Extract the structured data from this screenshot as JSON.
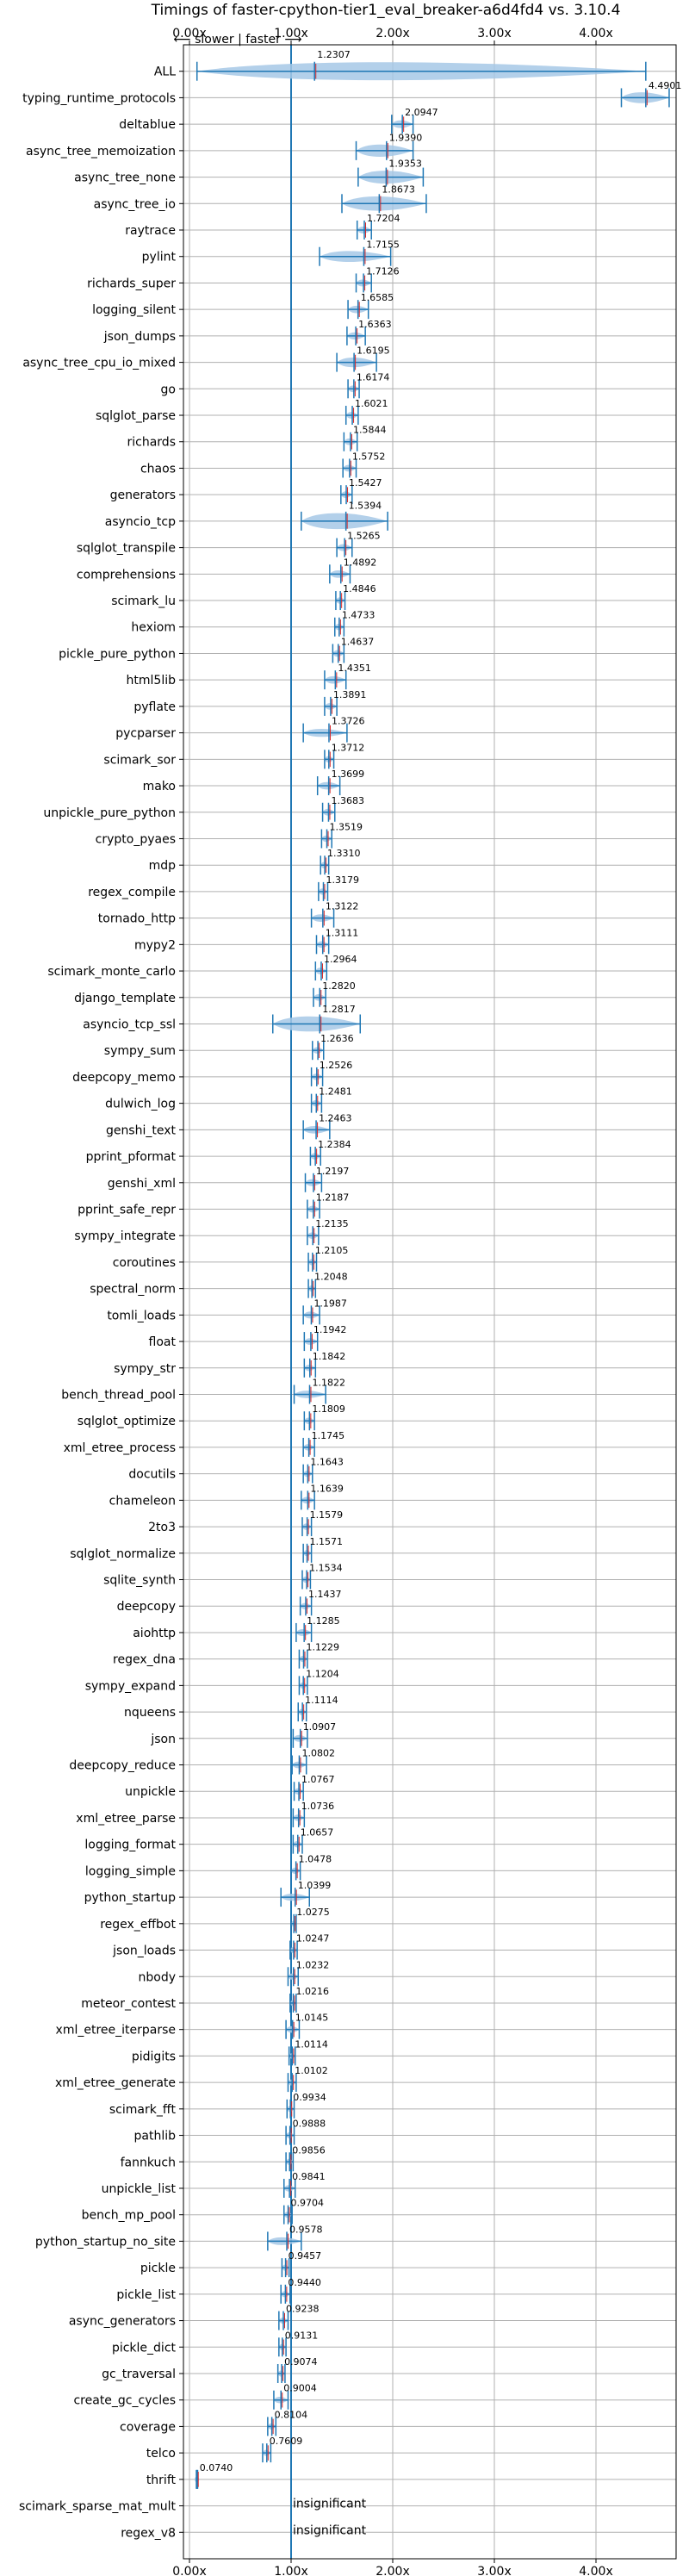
{
  "chart_data": {
    "type": "violin",
    "title": "Timings of faster-cpython-tier1_eval_breaker-a6d4fd4 vs. 3.10.4",
    "direction_label": "⟵ slower | faster ⟶",
    "xlim": [
      0,
      4.4
    ],
    "xticks": [
      0,
      1,
      2,
      3,
      4
    ],
    "xtick_labels": [
      "0.00x",
      "1.00x",
      "2.00x",
      "3.00x",
      "4.00x"
    ],
    "reference_line": 1.0,
    "colors": {
      "accent": "#1f77b4",
      "violin": "#a6c8e6",
      "median": "#d62728",
      "grid": "#b0b0b0"
    },
    "rows": [
      {
        "name": "ALL",
        "label": "1.2307",
        "value": 1.2307,
        "min": 0.074,
        "max": 4.4901,
        "spread": 0.45
      },
      {
        "name": "typing_runtime_protocols",
        "label": "4.4901",
        "value": 4.4901,
        "min": 4.25,
        "max": 4.72,
        "spread": 0.2
      },
      {
        "name": "deltablue",
        "label": "2.0947",
        "value": 2.0947,
        "min": 1.99,
        "max": 2.2,
        "spread": 0.09
      },
      {
        "name": "async_tree_memoization",
        "label": "1.9390",
        "value": 1.939,
        "min": 1.64,
        "max": 2.2,
        "spread": 0.25
      },
      {
        "name": "async_tree_none",
        "label": "1.9353",
        "value": 1.9353,
        "min": 1.66,
        "max": 2.3,
        "spread": 0.27
      },
      {
        "name": "async_tree_io",
        "label": "1.8673",
        "value": 1.8673,
        "min": 1.5,
        "max": 2.33,
        "spread": 0.32
      },
      {
        "name": "raytrace",
        "label": "1.7204",
        "value": 1.7204,
        "min": 1.65,
        "max": 1.79,
        "spread": 0.06
      },
      {
        "name": "pylint",
        "label": "1.7155",
        "value": 1.7155,
        "min": 1.28,
        "max": 1.98,
        "spread": 0.2
      },
      {
        "name": "richards_super",
        "label": "1.7126",
        "value": 1.7126,
        "min": 1.64,
        "max": 1.79,
        "spread": 0.06
      },
      {
        "name": "logging_silent",
        "label": "1.6585",
        "value": 1.6585,
        "min": 1.56,
        "max": 1.76,
        "spread": 0.08
      },
      {
        "name": "json_dumps",
        "label": "1.6363",
        "value": 1.6363,
        "min": 1.55,
        "max": 1.73,
        "spread": 0.07
      },
      {
        "name": "async_tree_cpu_io_mixed",
        "label": "1.6195",
        "value": 1.6195,
        "min": 1.45,
        "max": 1.84,
        "spread": 0.16
      },
      {
        "name": "go",
        "label": "1.6174",
        "value": 1.6174,
        "min": 1.56,
        "max": 1.67,
        "spread": 0.05
      },
      {
        "name": "sqlglot_parse",
        "label": "1.6021",
        "value": 1.6021,
        "min": 1.54,
        "max": 1.66,
        "spread": 0.05
      },
      {
        "name": "richards",
        "label": "1.5844",
        "value": 1.5844,
        "min": 1.52,
        "max": 1.65,
        "spread": 0.05
      },
      {
        "name": "chaos",
        "label": "1.5752",
        "value": 1.5752,
        "min": 1.51,
        "max": 1.64,
        "spread": 0.05
      },
      {
        "name": "generators",
        "label": "1.5427",
        "value": 1.5427,
        "min": 1.49,
        "max": 1.6,
        "spread": 0.05
      },
      {
        "name": "asyncio_tcp",
        "label": "1.5394",
        "value": 1.5394,
        "min": 1.1,
        "max": 1.95,
        "spread": 0.38
      },
      {
        "name": "sqlglot_transpile",
        "label": "1.5265",
        "value": 1.5265,
        "min": 1.45,
        "max": 1.6,
        "spread": 0.06
      },
      {
        "name": "comprehensions",
        "label": "1.4892",
        "value": 1.4892,
        "min": 1.38,
        "max": 1.58,
        "spread": 0.08
      },
      {
        "name": "scimark_lu",
        "label": "1.4846",
        "value": 1.4846,
        "min": 1.44,
        "max": 1.53,
        "spread": 0.04
      },
      {
        "name": "hexiom",
        "label": "1.4733",
        "value": 1.4733,
        "min": 1.43,
        "max": 1.52,
        "spread": 0.04
      },
      {
        "name": "pickle_pure_python",
        "label": "1.4637",
        "value": 1.4637,
        "min": 1.41,
        "max": 1.52,
        "spread": 0.05
      },
      {
        "name": "html5lib",
        "label": "1.4351",
        "value": 1.4351,
        "min": 1.33,
        "max": 1.54,
        "spread": 0.08
      },
      {
        "name": "pyflate",
        "label": "1.3891",
        "value": 1.3891,
        "min": 1.33,
        "max": 1.45,
        "spread": 0.05
      },
      {
        "name": "pycparser",
        "label": "1.3726",
        "value": 1.3726,
        "min": 1.12,
        "max": 1.55,
        "spread": 0.1
      },
      {
        "name": "scimark_sor",
        "label": "1.3712",
        "value": 1.3712,
        "min": 1.33,
        "max": 1.42,
        "spread": 0.04
      },
      {
        "name": "mako",
        "label": "1.3699",
        "value": 1.3699,
        "min": 1.26,
        "max": 1.48,
        "spread": 0.08
      },
      {
        "name": "unpickle_pure_python",
        "label": "1.3683",
        "value": 1.3683,
        "min": 1.31,
        "max": 1.43,
        "spread": 0.05
      },
      {
        "name": "crypto_pyaes",
        "label": "1.3519",
        "value": 1.3519,
        "min": 1.3,
        "max": 1.4,
        "spread": 0.04
      },
      {
        "name": "mdp",
        "label": "1.3310",
        "value": 1.331,
        "min": 1.29,
        "max": 1.37,
        "spread": 0.04
      },
      {
        "name": "regex_compile",
        "label": "1.3179",
        "value": 1.3179,
        "min": 1.27,
        "max": 1.36,
        "spread": 0.04
      },
      {
        "name": "tornado_http",
        "label": "1.3122",
        "value": 1.3122,
        "min": 1.2,
        "max": 1.42,
        "spread": 0.08
      },
      {
        "name": "mypy2",
        "label": "1.3111",
        "value": 1.3111,
        "min": 1.25,
        "max": 1.37,
        "spread": 0.05
      },
      {
        "name": "scimark_monte_carlo",
        "label": "1.2964",
        "value": 1.2964,
        "min": 1.24,
        "max": 1.35,
        "spread": 0.05
      },
      {
        "name": "django_template",
        "label": "1.2820",
        "value": 1.282,
        "min": 1.22,
        "max": 1.34,
        "spread": 0.05
      },
      {
        "name": "asyncio_tcp_ssl",
        "label": "1.2817",
        "value": 1.2817,
        "min": 0.82,
        "max": 1.68,
        "spread": 0.35
      },
      {
        "name": "sympy_sum",
        "label": "1.2636",
        "value": 1.2636,
        "min": 1.21,
        "max": 1.32,
        "spread": 0.04
      },
      {
        "name": "deepcopy_memo",
        "label": "1.2526",
        "value": 1.2526,
        "min": 1.2,
        "max": 1.31,
        "spread": 0.04
      },
      {
        "name": "dulwich_log",
        "label": "1.2481",
        "value": 1.2481,
        "min": 1.2,
        "max": 1.3,
        "spread": 0.04
      },
      {
        "name": "genshi_text",
        "label": "1.2463",
        "value": 1.2463,
        "min": 1.12,
        "max": 1.38,
        "spread": 0.08
      },
      {
        "name": "pprint_pformat",
        "label": "1.2384",
        "value": 1.2384,
        "min": 1.19,
        "max": 1.29,
        "spread": 0.04
      },
      {
        "name": "genshi_xml",
        "label": "1.2197",
        "value": 1.2197,
        "min": 1.14,
        "max": 1.3,
        "spread": 0.06
      },
      {
        "name": "pprint_safe_repr",
        "label": "1.2187",
        "value": 1.2187,
        "min": 1.16,
        "max": 1.28,
        "spread": 0.05
      },
      {
        "name": "sympy_integrate",
        "label": "1.2135",
        "value": 1.2135,
        "min": 1.16,
        "max": 1.27,
        "spread": 0.04
      },
      {
        "name": "coroutines",
        "label": "1.2105",
        "value": 1.2105,
        "min": 1.17,
        "max": 1.25,
        "spread": 0.04
      },
      {
        "name": "spectral_norm",
        "label": "1.2048",
        "value": 1.2048,
        "min": 1.17,
        "max": 1.24,
        "spread": 0.03
      },
      {
        "name": "tomli_loads",
        "label": "1.1987",
        "value": 1.1987,
        "min": 1.12,
        "max": 1.28,
        "spread": 0.06
      },
      {
        "name": "float",
        "label": "1.1942",
        "value": 1.1942,
        "min": 1.13,
        "max": 1.26,
        "spread": 0.05
      },
      {
        "name": "sympy_str",
        "label": "1.1842",
        "value": 1.1842,
        "min": 1.13,
        "max": 1.24,
        "spread": 0.04
      },
      {
        "name": "bench_thread_pool",
        "label": "1.1822",
        "value": 1.1822,
        "min": 1.03,
        "max": 1.34,
        "spread": 0.08
      },
      {
        "name": "sqlglot_optimize",
        "label": "1.1809",
        "value": 1.1809,
        "min": 1.13,
        "max": 1.23,
        "spread": 0.04
      },
      {
        "name": "xml_etree_process",
        "label": "1.1745",
        "value": 1.1745,
        "min": 1.12,
        "max": 1.23,
        "spread": 0.04
      },
      {
        "name": "docutils",
        "label": "1.1643",
        "value": 1.1643,
        "min": 1.12,
        "max": 1.21,
        "spread": 0.04
      },
      {
        "name": "chameleon",
        "label": "1.1639",
        "value": 1.1639,
        "min": 1.1,
        "max": 1.23,
        "spread": 0.05
      },
      {
        "name": "2to3",
        "label": "1.1579",
        "value": 1.1579,
        "min": 1.11,
        "max": 1.2,
        "spread": 0.04
      },
      {
        "name": "sqlglot_normalize",
        "label": "1.1571",
        "value": 1.1571,
        "min": 1.12,
        "max": 1.2,
        "spread": 0.03
      },
      {
        "name": "sqlite_synth",
        "label": "1.1534",
        "value": 1.1534,
        "min": 1.11,
        "max": 1.19,
        "spread": 0.04
      },
      {
        "name": "deepcopy",
        "label": "1.1437",
        "value": 1.1437,
        "min": 1.09,
        "max": 1.2,
        "spread": 0.04
      },
      {
        "name": "aiohttp",
        "label": "1.1285",
        "value": 1.1285,
        "min": 1.05,
        "max": 1.2,
        "spread": 0.06
      },
      {
        "name": "regex_dna",
        "label": "1.1229",
        "value": 1.1229,
        "min": 1.08,
        "max": 1.16,
        "spread": 0.03
      },
      {
        "name": "sympy_expand",
        "label": "1.1204",
        "value": 1.1204,
        "min": 1.08,
        "max": 1.16,
        "spread": 0.03
      },
      {
        "name": "nqueens",
        "label": "1.1114",
        "value": 1.1114,
        "min": 1.07,
        "max": 1.15,
        "spread": 0.03
      },
      {
        "name": "json",
        "label": "1.0907",
        "value": 1.0907,
        "min": 1.02,
        "max": 1.16,
        "spread": 0.06
      },
      {
        "name": "deepcopy_reduce",
        "label": "1.0802",
        "value": 1.0802,
        "min": 1.01,
        "max": 1.15,
        "spread": 0.05
      },
      {
        "name": "unpickle",
        "label": "1.0767",
        "value": 1.0767,
        "min": 1.03,
        "max": 1.12,
        "spread": 0.04
      },
      {
        "name": "xml_etree_parse",
        "label": "1.0736",
        "value": 1.0736,
        "min": 1.02,
        "max": 1.13,
        "spread": 0.04
      },
      {
        "name": "logging_format",
        "label": "1.0657",
        "value": 1.0657,
        "min": 1.02,
        "max": 1.11,
        "spread": 0.04
      },
      {
        "name": "logging_simple",
        "label": "1.0478",
        "value": 1.0478,
        "min": 1.0,
        "max": 1.09,
        "spread": 0.04
      },
      {
        "name": "python_startup",
        "label": "1.0399",
        "value": 1.0399,
        "min": 0.9,
        "max": 1.18,
        "spread": 0.07
      },
      {
        "name": "regex_effbot",
        "label": "1.0275",
        "value": 1.0275,
        "min": 1.0,
        "max": 1.05,
        "spread": 0.02
      },
      {
        "name": "json_loads",
        "label": "1.0247",
        "value": 1.0247,
        "min": 0.99,
        "max": 1.06,
        "spread": 0.03
      },
      {
        "name": "nbody",
        "label": "1.0232",
        "value": 1.0232,
        "min": 0.97,
        "max": 1.07,
        "spread": 0.04
      },
      {
        "name": "meteor_contest",
        "label": "1.0216",
        "value": 1.0216,
        "min": 0.99,
        "max": 1.05,
        "spread": 0.02
      },
      {
        "name": "xml_etree_iterparse",
        "label": "1.0145",
        "value": 1.0145,
        "min": 0.95,
        "max": 1.08,
        "spread": 0.05
      },
      {
        "name": "pidigits",
        "label": "1.0114",
        "value": 1.0114,
        "min": 0.98,
        "max": 1.04,
        "spread": 0.02
      },
      {
        "name": "xml_etree_generate",
        "label": "1.0102",
        "value": 1.0102,
        "min": 0.97,
        "max": 1.05,
        "spread": 0.03
      },
      {
        "name": "scimark_fft",
        "label": "0.9934",
        "value": 0.9934,
        "min": 0.96,
        "max": 1.03,
        "spread": 0.03
      },
      {
        "name": "pathlib",
        "label": "0.9888",
        "value": 0.9888,
        "min": 0.95,
        "max": 1.03,
        "spread": 0.03
      },
      {
        "name": "fannkuch",
        "label": "0.9856",
        "value": 0.9856,
        "min": 0.95,
        "max": 1.02,
        "spread": 0.03
      },
      {
        "name": "unpickle_list",
        "label": "0.9841",
        "value": 0.9841,
        "min": 0.93,
        "max": 1.04,
        "spread": 0.04
      },
      {
        "name": "bench_mp_pool",
        "label": "0.9704",
        "value": 0.9704,
        "min": 0.93,
        "max": 1.01,
        "spread": 0.03
      },
      {
        "name": "python_startup_no_site",
        "label": "0.9578",
        "value": 0.9578,
        "min": 0.77,
        "max": 1.1,
        "spread": 0.09
      },
      {
        "name": "pickle",
        "label": "0.9457",
        "value": 0.9457,
        "min": 0.91,
        "max": 0.98,
        "spread": 0.03
      },
      {
        "name": "pickle_list",
        "label": "0.9440",
        "value": 0.944,
        "min": 0.9,
        "max": 0.99,
        "spread": 0.03
      },
      {
        "name": "async_generators",
        "label": "0.9238",
        "value": 0.9238,
        "min": 0.88,
        "max": 0.97,
        "spread": 0.03
      },
      {
        "name": "pickle_dict",
        "label": "0.9131",
        "value": 0.9131,
        "min": 0.88,
        "max": 0.95,
        "spread": 0.03
      },
      {
        "name": "gc_traversal",
        "label": "0.9074",
        "value": 0.9074,
        "min": 0.87,
        "max": 0.94,
        "spread": 0.03
      },
      {
        "name": "create_gc_cycles",
        "label": "0.9004",
        "value": 0.9004,
        "min": 0.83,
        "max": 0.97,
        "spread": 0.04
      },
      {
        "name": "coverage",
        "label": "0.8104",
        "value": 0.8104,
        "min": 0.77,
        "max": 0.85,
        "spread": 0.03
      },
      {
        "name": "telco",
        "label": "0.7609",
        "value": 0.7609,
        "min": 0.72,
        "max": 0.8,
        "spread": 0.03
      },
      {
        "name": "thrift",
        "label": "0.0740",
        "value": 0.074,
        "min": 0.068,
        "max": 0.08,
        "spread": 0.005
      },
      {
        "name": "scimark_sparse_mat_mult",
        "label": "insignificant",
        "value": null,
        "min": null,
        "max": null,
        "spread": 0
      },
      {
        "name": "regex_v8",
        "label": "insignificant",
        "value": null,
        "min": null,
        "max": null,
        "spread": 0
      }
    ]
  }
}
